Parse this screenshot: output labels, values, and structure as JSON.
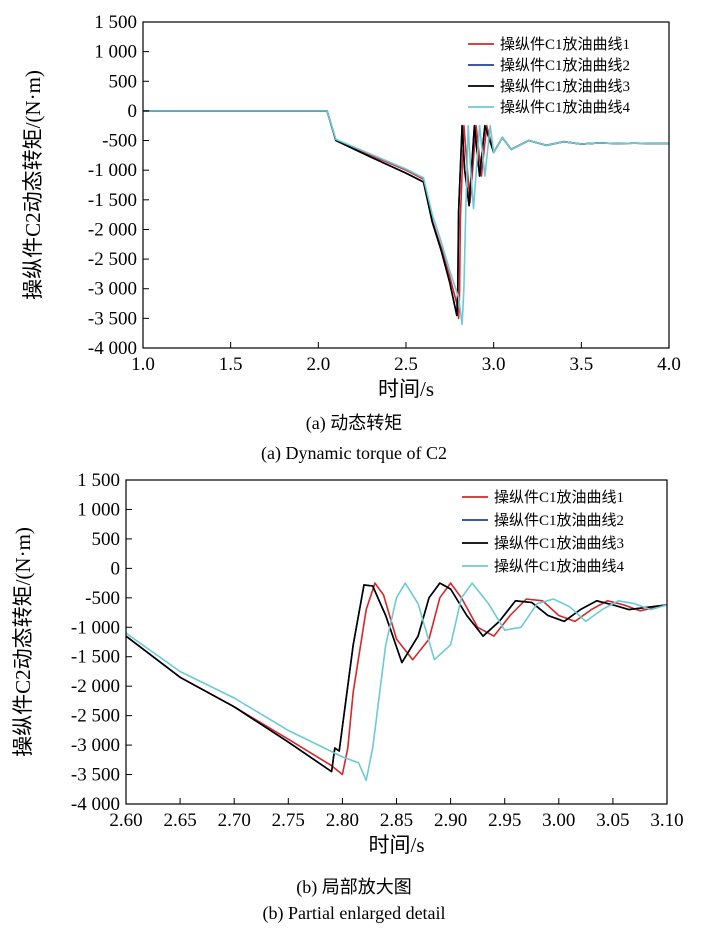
{
  "chart_data": [
    {
      "type": "line",
      "ylabel": "操纵件C2动态转矩/(N·m)",
      "xlabel": "时间/s",
      "caption_cn": "(a) 动态转矩",
      "caption_en": "(a) Dynamic torque of C2",
      "xlim": [
        1.0,
        4.0
      ],
      "ylim": [
        -4000,
        1500
      ],
      "xticks": [
        1.0,
        1.5,
        2.0,
        2.5,
        3.0,
        3.5,
        4.0
      ],
      "xtick_labels": [
        "1.0",
        "1.5",
        "2.0",
        "2.5",
        "3.0",
        "3.5",
        "4.0"
      ],
      "yticks": [
        1500,
        1000,
        500,
        0,
        -500,
        -1000,
        -1500,
        -2000,
        -2500,
        -3000,
        -3500,
        -4000
      ],
      "ytick_labels": [
        "1 500",
        "1 000",
        "500",
        "0",
        "-500",
        "-1 000",
        "-1 500",
        "-2 000",
        "-2 500",
        "-3 000",
        "-3 500",
        "-4 000"
      ],
      "grid": false,
      "legend_position": "top-right",
      "series": [
        {
          "name": "操纵件C1放油曲线1",
          "color": "#d62728",
          "x": [
            1.0,
            2.05,
            2.1,
            2.3,
            2.5,
            2.6,
            2.65,
            2.7,
            2.75,
            2.79,
            2.8,
            2.805,
            2.81,
            2.83,
            2.85,
            2.865,
            2.9,
            2.93,
            2.96,
            3.0,
            3.05,
            3.1,
            3.2,
            3.3,
            3.4,
            3.5,
            3.6,
            3.7,
            3.8,
            3.9,
            4.0
          ],
          "y": [
            0,
            0,
            -500,
            -750,
            -1000,
            -1150,
            -1850,
            -2300,
            -2800,
            -3250,
            -3500,
            -3100,
            -1800,
            -250,
            -1000,
            -1550,
            -250,
            -1100,
            -250,
            -700,
            -450,
            -650,
            -500,
            -580,
            -520,
            -560,
            -540,
            -550,
            -545,
            -550,
            -550
          ]
        },
        {
          "name": "操纵件C1放油曲线2",
          "color": "#1f3fa8",
          "x": [
            1.0,
            2.05,
            2.1,
            2.3,
            2.5,
            2.6,
            2.65,
            2.7,
            2.75,
            2.79,
            2.795,
            2.8,
            2.82,
            2.835,
            2.86,
            2.89,
            2.92,
            2.95,
            3.0,
            3.05,
            3.1,
            3.2,
            3.3,
            3.4,
            3.5,
            3.6,
            3.7,
            3.8,
            3.9,
            4.0
          ],
          "y": [
            0,
            0,
            -500,
            -780,
            -1050,
            -1200,
            -1880,
            -2350,
            -2900,
            -3450,
            -3100,
            -1700,
            -250,
            -1000,
            -1600,
            -250,
            -1100,
            -250,
            -700,
            -450,
            -650,
            -500,
            -580,
            -520,
            -560,
            -540,
            -550,
            -545,
            -550,
            -550
          ]
        },
        {
          "name": "操纵件C1放油曲线3",
          "color": "#000000",
          "x": [
            1.0,
            2.05,
            2.1,
            2.3,
            2.5,
            2.6,
            2.65,
            2.7,
            2.75,
            2.79,
            2.795,
            2.8,
            2.82,
            2.835,
            2.86,
            2.89,
            2.92,
            2.95,
            3.0,
            3.05,
            3.1,
            3.2,
            3.3,
            3.4,
            3.5,
            3.6,
            3.7,
            3.8,
            3.9,
            4.0
          ],
          "y": [
            0,
            0,
            -500,
            -780,
            -1050,
            -1200,
            -1880,
            -2350,
            -2900,
            -3450,
            -3100,
            -1700,
            -250,
            -1000,
            -1600,
            -250,
            -1100,
            -250,
            -700,
            -450,
            -650,
            -500,
            -580,
            -520,
            -560,
            -540,
            -550,
            -545,
            -550,
            -550
          ]
        },
        {
          "name": "操纵件C1放油曲线4",
          "color": "#6ccad6",
          "x": [
            1.0,
            2.05,
            2.1,
            2.3,
            2.5,
            2.6,
            2.65,
            2.7,
            2.75,
            2.8,
            2.82,
            2.83,
            2.84,
            2.855,
            2.87,
            2.885,
            2.92,
            2.95,
            2.98,
            3.0,
            3.05,
            3.1,
            3.2,
            3.3,
            3.4,
            3.5,
            3.6,
            3.7,
            3.8,
            3.9,
            4.0
          ],
          "y": [
            0,
            0,
            -480,
            -730,
            -980,
            -1130,
            -1750,
            -2200,
            -2700,
            -3150,
            -3600,
            -3000,
            -1800,
            -250,
            -1050,
            -1650,
            -250,
            -1100,
            -250,
            -700,
            -450,
            -650,
            -500,
            -580,
            -520,
            -560,
            -540,
            -550,
            -545,
            -550,
            -550
          ]
        }
      ]
    },
    {
      "type": "line",
      "ylabel": "操纵件C2动态转矩/(N·m)",
      "xlabel": "时间/s",
      "caption_cn": "(b) 局部放大图",
      "caption_en": "(b) Partial enlarged detail",
      "xlim": [
        2.6,
        3.1
      ],
      "ylim": [
        -4000,
        1500
      ],
      "xticks": [
        2.6,
        2.65,
        2.7,
        2.75,
        2.8,
        2.85,
        2.9,
        2.95,
        3.0,
        3.05,
        3.1
      ],
      "xtick_labels": [
        "2.60",
        "2.65",
        "2.70",
        "2.75",
        "2.80",
        "2.85",
        "2.90",
        "2.95",
        "3.00",
        "3.05",
        "3.10"
      ],
      "yticks": [
        1500,
        1000,
        500,
        0,
        -500,
        -1000,
        -1500,
        -2000,
        -2500,
        -3000,
        -3500,
        -4000
      ],
      "ytick_labels": [
        "1 500",
        "1 000",
        "500",
        "0",
        "-500",
        "-1 000",
        "-1 500",
        "-2 000",
        "-2 500",
        "-3 000",
        "-3 500",
        "-4 000"
      ],
      "grid": false,
      "legend_position": "top-right",
      "series": [
        {
          "name": "操纵件C1放油曲线1",
          "color": "#d62728",
          "x": [
            2.6,
            2.65,
            2.7,
            2.75,
            2.79,
            2.8,
            2.805,
            2.81,
            2.822,
            2.83,
            2.838,
            2.85,
            2.865,
            2.88,
            2.89,
            2.9,
            2.91,
            2.925,
            2.94,
            2.955,
            2.97,
            2.985,
            3.0,
            3.015,
            3.03,
            3.045,
            3.06,
            3.075,
            3.1
          ],
          "y": [
            -1150,
            -1850,
            -2350,
            -2900,
            -3350,
            -3500,
            -3050,
            -2100,
            -700,
            -250,
            -450,
            -1200,
            -1550,
            -1200,
            -500,
            -250,
            -500,
            -1000,
            -1150,
            -800,
            -520,
            -550,
            -800,
            -900,
            -700,
            -550,
            -620,
            -720,
            -620
          ]
        },
        {
          "name": "操纵件C1放油曲线2",
          "color": "#1f3fa8",
          "x": [
            2.6,
            2.65,
            2.7,
            2.75,
            2.79,
            2.793,
            2.797,
            2.81,
            2.82,
            2.828,
            2.84,
            2.855,
            2.87,
            2.88,
            2.89,
            2.9,
            2.915,
            2.93,
            2.945,
            2.96,
            2.975,
            2.99,
            3.005,
            3.02,
            3.035,
            3.05,
            3.065,
            3.1
          ],
          "y": [
            -1150,
            -1850,
            -2350,
            -2950,
            -3450,
            -3050,
            -3100,
            -1300,
            -280,
            -300,
            -800,
            -1600,
            -1150,
            -500,
            -250,
            -350,
            -800,
            -1150,
            -900,
            -550,
            -580,
            -800,
            -900,
            -700,
            -550,
            -620,
            -700,
            -620
          ]
        },
        {
          "name": "操纵件C1放油曲线3",
          "color": "#000000",
          "x": [
            2.6,
            2.65,
            2.7,
            2.75,
            2.79,
            2.793,
            2.797,
            2.81,
            2.82,
            2.828,
            2.84,
            2.855,
            2.87,
            2.88,
            2.89,
            2.9,
            2.915,
            2.93,
            2.945,
            2.96,
            2.975,
            2.99,
            3.005,
            3.02,
            3.035,
            3.05,
            3.065,
            3.1
          ],
          "y": [
            -1150,
            -1850,
            -2350,
            -2950,
            -3450,
            -3050,
            -3100,
            -1300,
            -280,
            -300,
            -800,
            -1600,
            -1150,
            -500,
            -250,
            -350,
            -800,
            -1150,
            -900,
            -550,
            -580,
            -800,
            -900,
            -700,
            -550,
            -620,
            -700,
            -620
          ]
        },
        {
          "name": "操纵件C1放油曲线4",
          "color": "#6ccad6",
          "x": [
            2.6,
            2.65,
            2.7,
            2.75,
            2.8,
            2.815,
            2.822,
            2.828,
            2.84,
            2.85,
            2.858,
            2.87,
            2.885,
            2.9,
            2.91,
            2.92,
            2.935,
            2.95,
            2.965,
            2.98,
            2.995,
            3.01,
            3.025,
            3.04,
            3.055,
            3.07,
            3.085,
            3.1
          ],
          "y": [
            -1100,
            -1750,
            -2200,
            -2750,
            -3200,
            -3300,
            -3600,
            -3050,
            -1300,
            -500,
            -250,
            -600,
            -1550,
            -1300,
            -500,
            -250,
            -600,
            -1050,
            -1000,
            -600,
            -520,
            -650,
            -900,
            -700,
            -550,
            -600,
            -700,
            -620
          ]
        }
      ]
    }
  ]
}
